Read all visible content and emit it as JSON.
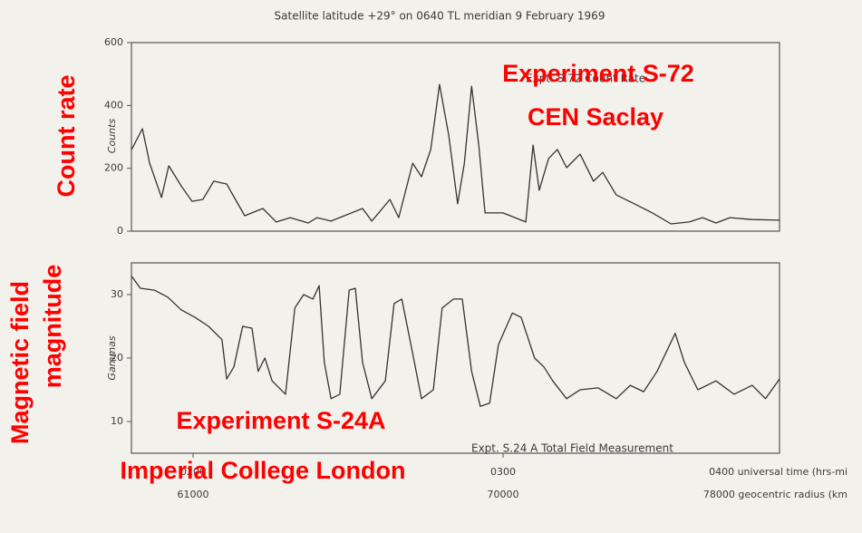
{
  "title": "Satellite latitude +29° on 0640 TL meridian 9 February 1969",
  "annotations": {
    "count_rate": "Count rate",
    "magnetic_1": "Magnetic field",
    "magnetic_2": "magnitude",
    "s72_1": "Experiment S-72",
    "s72_2": "CEN Saclay",
    "s24_1": "Experiment S-24A",
    "s24_2": "Imperial College London"
  },
  "chart_data": [
    {
      "type": "line",
      "label": "Expt. S.72 Count Rate",
      "ylabel": "Counts",
      "color": "#333333",
      "xlim": [
        108.07,
        233.5
      ],
      "ylim": [
        0,
        600
      ],
      "yticks": [
        0,
        200,
        400,
        600
      ],
      "x": [
        108.1,
        110.2,
        111.6,
        113.9,
        115.3,
        117.7,
        119.8,
        121.9,
        124.0,
        126.5,
        128.2,
        130.0,
        133.5,
        136.1,
        138.8,
        142.3,
        144.0,
        146.7,
        149.3,
        152.8,
        154.6,
        158.1,
        159.8,
        162.5,
        164.2,
        166.0,
        167.7,
        169.5,
        171.2,
        172.5,
        173.9,
        175.3,
        176.5,
        180.0,
        184.4,
        185.8,
        187.0,
        188.8,
        190.5,
        192.3,
        194.9,
        197.5,
        199.3,
        201.9,
        205.4,
        208.9,
        212.5,
        216.0,
        218.6,
        221.2,
        223.9,
        228.2,
        233.5
      ],
      "values": [
        260,
        326,
        216,
        107,
        208,
        144,
        95,
        101,
        159,
        150,
        101,
        49,
        72,
        29,
        43,
        26,
        43,
        32,
        49,
        72,
        32,
        101,
        43,
        216,
        173,
        260,
        467,
        303,
        87,
        216,
        461,
        274,
        58,
        58,
        29,
        274,
        130,
        231,
        260,
        202,
        245,
        159,
        187,
        115,
        87,
        58,
        23,
        29,
        43,
        26,
        43,
        37,
        35
      ]
    },
    {
      "type": "line",
      "label": "Expt. S.24 A Total Field Measurement",
      "ylabel": "Gammas",
      "color": "#333333",
      "xlim": [
        108.07,
        233.5
      ],
      "ylim": [
        5,
        35
      ],
      "yticks": [
        10,
        20,
        30
      ],
      "xticks": [
        {
          "value": 120,
          "label": "0200"
        },
        {
          "value": 180,
          "label": "0300"
        },
        {
          "value": 240,
          "label": "0400 universal time (hrs-mi"
        }
      ],
      "x2ticks": [
        61000,
        70000,
        {
          "value": 78000,
          "label": "78000 geocentric radius (km"
        }
      ],
      "x": [
        108.1,
        109.8,
        112.5,
        115.1,
        117.7,
        120.4,
        123.0,
        125.6,
        126.5,
        127.9,
        129.6,
        131.4,
        132.6,
        133.9,
        135.3,
        137.9,
        139.7,
        141.4,
        143.2,
        144.4,
        145.4,
        146.7,
        148.4,
        150.2,
        151.4,
        152.8,
        154.6,
        157.2,
        158.9,
        160.4,
        162.5,
        164.2,
        166.5,
        168.2,
        170.4,
        172.1,
        173.9,
        175.6,
        177.4,
        179.1,
        181.8,
        183.5,
        186.1,
        187.9,
        189.6,
        192.3,
        194.9,
        198.4,
        201.9,
        204.6,
        207.2,
        209.8,
        213.3,
        215.1,
        217.7,
        221.2,
        224.7,
        228.2,
        230.8,
        233.5
      ],
      "values": [
        32.9,
        31,
        30.7,
        29.6,
        27.6,
        26.4,
        25,
        22.9,
        16.7,
        18.6,
        25,
        24.7,
        17.9,
        20,
        16.4,
        14.3,
        27.9,
        30,
        29.3,
        31.4,
        19.3,
        13.6,
        14.3,
        30.7,
        31,
        19.3,
        13.6,
        16.4,
        28.6,
        29.3,
        20.7,
        13.6,
        15,
        27.9,
        29.3,
        29.3,
        17.9,
        12.4,
        12.9,
        22.1,
        27.1,
        26.4,
        20,
        18.6,
        16.4,
        13.6,
        15,
        15.3,
        13.6,
        15.7,
        14.7,
        17.9,
        23.9,
        19.3,
        15,
        16.4,
        14.3,
        15.7,
        13.6,
        16.7
      ]
    }
  ]
}
